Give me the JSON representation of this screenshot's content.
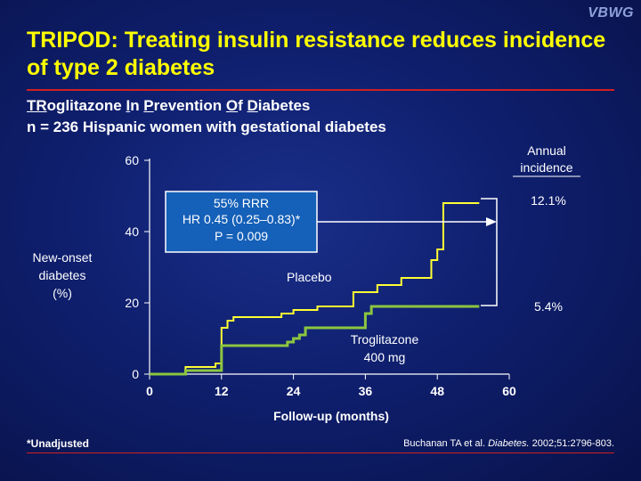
{
  "logo": "VBWG",
  "title": "TRIPOD: Treating insulin resistance reduces incidence of type 2 diabetes",
  "subtitle": {
    "line1_parts": [
      {
        "text": "TR",
        "u": true
      },
      {
        "text": "oglitazone ",
        "u": false
      },
      {
        "text": "I",
        "u": true
      },
      {
        "text": "n ",
        "u": false
      },
      {
        "text": "P",
        "u": true
      },
      {
        "text": "revention ",
        "u": false
      },
      {
        "text": "O",
        "u": true
      },
      {
        "text": "f ",
        "u": false
      },
      {
        "text": "D",
        "u": true
      },
      {
        "text": "iabetes",
        "u": false
      }
    ],
    "line2": "n = 236 Hispanic women with gestational diabetes"
  },
  "stats_box": {
    "line1": "55% RRR",
    "line2": "HR 0.45 (0.25–0.83)*",
    "line3": "P = 0.009"
  },
  "annual_incidence": {
    "header_line1": "Annual",
    "header_line2": "incidence",
    "placebo": "12.1%",
    "troglitazone": "5.4%"
  },
  "footnote": "*Unadjusted",
  "citation": {
    "prefix": "Buchanan TA et al. ",
    "journal": "Diabetes.",
    "suffix": " 2002;51:2796-803."
  },
  "chart_data": {
    "type": "line",
    "title": "",
    "xlabel": "Follow-up (months)",
    "ylabel_lines": [
      "New-onset",
      "diabetes",
      "(%)"
    ],
    "xlim": [
      0,
      60
    ],
    "ylim": [
      0,
      60
    ],
    "xticks": [
      0,
      12,
      24,
      36,
      48,
      60
    ],
    "yticks": [
      0,
      20,
      40,
      60
    ],
    "grid": false,
    "series": [
      {
        "name": "Placebo",
        "color": "#ffff33",
        "step": true,
        "points": [
          [
            0,
            0
          ],
          [
            3,
            0
          ],
          [
            6,
            2
          ],
          [
            10,
            2
          ],
          [
            11,
            3
          ],
          [
            12,
            4
          ],
          [
            12,
            13
          ],
          [
            13,
            15
          ],
          [
            14,
            16
          ],
          [
            20,
            16
          ],
          [
            22,
            17
          ],
          [
            23,
            17
          ],
          [
            24,
            18
          ],
          [
            27,
            18
          ],
          [
            28,
            19
          ],
          [
            33,
            19
          ],
          [
            34,
            23
          ],
          [
            37,
            23
          ],
          [
            38,
            25
          ],
          [
            41,
            25
          ],
          [
            42,
            27
          ],
          [
            46,
            27
          ],
          [
            47,
            32
          ],
          [
            48,
            35
          ],
          [
            49,
            48
          ],
          [
            55,
            48
          ]
        ]
      },
      {
        "name": "Troglitazone 400 mg",
        "color": "#8cc63f",
        "step": true,
        "points": [
          [
            0,
            0
          ],
          [
            5,
            0
          ],
          [
            6,
            1
          ],
          [
            11,
            1
          ],
          [
            12,
            2
          ],
          [
            12,
            8
          ],
          [
            22,
            8
          ],
          [
            23,
            9
          ],
          [
            24,
            10
          ],
          [
            25,
            11
          ],
          [
            26,
            12
          ],
          [
            26,
            13
          ],
          [
            36,
            13
          ],
          [
            36,
            17
          ],
          [
            37,
            19
          ],
          [
            55,
            19
          ]
        ]
      }
    ],
    "annotations": [
      {
        "text": "Placebo",
        "x": 27,
        "y": 27
      },
      {
        "text_lines": [
          "Troglitazone",
          "400 mg"
        ],
        "x": 41,
        "y": 8
      }
    ]
  }
}
